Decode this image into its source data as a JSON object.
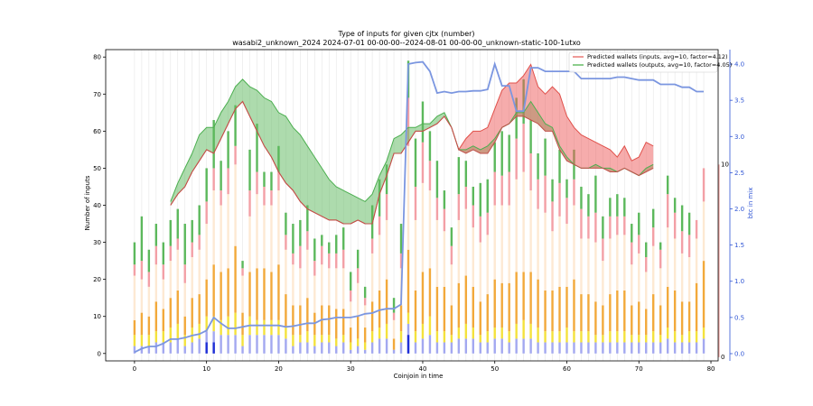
{
  "chart_data": {
    "type": "bar",
    "title": "Type of inputs for given cjtx (number)",
    "subtitle": "wasabi2_unknown_2024 2024-07-01 00-00-00--2024-08-01 00-00-00_unknown-static-100-1utxo",
    "xlabel": "Coinjoin in time",
    "ylabel": "Number of inputs",
    "ylabel_right": "btc in mix",
    "xlim": [
      -4,
      81
    ],
    "ylim": [
      -2,
      82
    ],
    "ylim_right": [
      -0.1,
      4.2
    ],
    "x_ticks": [
      0,
      10,
      20,
      30,
      40,
      50,
      60,
      70,
      80
    ],
    "y_ticks": [
      0,
      10,
      20,
      30,
      40,
      50,
      60,
      70,
      80
    ],
    "y_ticks_right": [
      0.0,
      0.5,
      1.0,
      1.5,
      2.0,
      2.5,
      3.0,
      3.5,
      4.0
    ],
    "grid": "vertical",
    "legend_position": "top-right",
    "legend": [
      {
        "label": "Predicted wallets (inputs, avg=10, factor=4.12)",
        "color": "#e8706b"
      },
      {
        "label": "Predicted wallets (outputs, avg=10, factor=4.05)",
        "color": "#5cb85c"
      }
    ],
    "right_marker": {
      "y": 51,
      "label": "10",
      "y2": -1,
      "label2": "0"
    },
    "stack_colors": {
      "blue": "#a3a8f0",
      "yellow": "#f4e23c",
      "orange": "#f2a93b",
      "cream": "#fde9d3",
      "pink": "#f3a0a6",
      "green": "#5cb85c"
    },
    "x": [
      0,
      1,
      2,
      3,
      4,
      5,
      6,
      7,
      8,
      9,
      10,
      11,
      12,
      13,
      14,
      15,
      16,
      17,
      18,
      19,
      20,
      21,
      22,
      23,
      24,
      25,
      26,
      27,
      28,
      29,
      30,
      31,
      32,
      33,
      34,
      35,
      36,
      37,
      38,
      39,
      40,
      41,
      42,
      43,
      44,
      45,
      46,
      47,
      48,
      49,
      50,
      51,
      52,
      53,
      54,
      55,
      56,
      57,
      58,
      59,
      60,
      61,
      62,
      63,
      64,
      65,
      66,
      67,
      68,
      69,
      70,
      71,
      72,
      73,
      74,
      75,
      76,
      77,
      78,
      79
    ],
    "totals": [
      30,
      37,
      28,
      35,
      30,
      36,
      39,
      35,
      36,
      40,
      50,
      63,
      52,
      60,
      67,
      25,
      55,
      62,
      49,
      49,
      56,
      38,
      35,
      36,
      40,
      31,
      32,
      30,
      32,
      34,
      22,
      28,
      18,
      40,
      47,
      51,
      15,
      35,
      79,
      58,
      68,
      60,
      52,
      44,
      34,
      53,
      52,
      45,
      46,
      47,
      57,
      60,
      59,
      69,
      74,
      63,
      54,
      58,
      47,
      55,
      47,
      55,
      45,
      43,
      48,
      37,
      42,
      43,
      42,
      35,
      38,
      30,
      39,
      30,
      48,
      42,
      40,
      38,
      36,
      50
    ],
    "greens": [
      6,
      12,
      6,
      6,
      6,
      7,
      8,
      11,
      6,
      8,
      9,
      13,
      8,
      10,
      11,
      2,
      11,
      13,
      4,
      5,
      7,
      6,
      8,
      7,
      7,
      6,
      3,
      3,
      5,
      6,
      5,
      5,
      3,
      9,
      10,
      8,
      4,
      8,
      10,
      13,
      11,
      8,
      10,
      5,
      5,
      10,
      7,
      5,
      9,
      9,
      8,
      12,
      10,
      11,
      12,
      9,
      7,
      10,
      6,
      9,
      5,
      8,
      6,
      6,
      10,
      6,
      5,
      6,
      5,
      5,
      6,
      4,
      5,
      2,
      5,
      4,
      7,
      6,
      0,
      0
    ],
    "pinks": [
      3,
      5,
      4,
      5,
      4,
      4,
      3,
      5,
      4,
      4,
      6,
      6,
      4,
      7,
      5,
      2,
      7,
      6,
      5,
      4,
      5,
      4,
      3,
      6,
      5,
      4,
      5,
      4,
      4,
      5,
      3,
      4,
      2,
      4,
      5,
      7,
      2,
      4,
      13,
      9,
      11,
      8,
      6,
      6,
      5,
      7,
      6,
      6,
      7,
      6,
      9,
      8,
      9,
      11,
      13,
      10,
      8,
      10,
      8,
      9,
      7,
      7,
      8,
      6,
      8,
      6,
      6,
      5,
      5,
      6,
      5,
      4,
      5,
      5,
      9,
      7,
      6,
      6,
      5,
      9
    ],
    "creams": [
      12,
      9,
      8,
      10,
      8,
      10,
      11,
      9,
      11,
      12,
      15,
      20,
      18,
      20,
      22,
      10,
      15,
      20,
      17,
      18,
      20,
      12,
      11,
      10,
      13,
      10,
      11,
      10,
      11,
      11,
      7,
      9,
      6,
      13,
      15,
      16,
      5,
      10,
      28,
      19,
      24,
      21,
      18,
      15,
      11,
      17,
      18,
      16,
      16,
      16,
      20,
      21,
      21,
      25,
      27,
      22,
      19,
      21,
      16,
      19,
      17,
      20,
      15,
      15,
      16,
      12,
      15,
      15,
      15,
      11,
      13,
      10,
      13,
      10,
      16,
      14,
      13,
      12,
      12,
      16
    ],
    "oranges": [
      4,
      6,
      5,
      8,
      6,
      8,
      9,
      5,
      8,
      8,
      10,
      14,
      13,
      13,
      18,
      6,
      12,
      14,
      14,
      13,
      15,
      9,
      8,
      8,
      9,
      6,
      8,
      8,
      8,
      7,
      4,
      6,
      4,
      8,
      10,
      12,
      3,
      7,
      17,
      11,
      14,
      13,
      12,
      12,
      8,
      12,
      13,
      11,
      9,
      10,
      13,
      12,
      13,
      14,
      13,
      14,
      13,
      11,
      11,
      12,
      11,
      14,
      10,
      10,
      9,
      8,
      10,
      11,
      11,
      8,
      9,
      7,
      10,
      8,
      11,
      11,
      9,
      8,
      13,
      18
    ],
    "yellows": [
      3,
      3,
      3,
      3,
      3,
      4,
      4,
      3,
      4,
      4,
      4,
      4,
      4,
      5,
      6,
      3,
      5,
      4,
      4,
      4,
      4,
      3,
      3,
      2,
      3,
      3,
      2,
      2,
      2,
      2,
      2,
      2,
      2,
      3,
      3,
      4,
      0,
      3,
      3,
      3,
      4,
      5,
      3,
      3,
      2,
      3,
      4,
      3,
      2,
      3,
      3,
      3,
      3,
      4,
      5,
      4,
      4,
      3,
      3,
      3,
      4,
      3,
      3,
      3,
      2,
      2,
      3,
      3,
      3,
      2,
      2,
      2,
      3,
      2,
      3,
      3,
      2,
      3,
      3,
      3
    ],
    "blues": [
      2,
      2,
      2,
      3,
      3,
      3,
      4,
      2,
      3,
      4,
      6,
      6,
      5,
      5,
      5,
      2,
      5,
      5,
      5,
      5,
      5,
      4,
      2,
      3,
      3,
      2,
      3,
      3,
      2,
      3,
      1,
      2,
      1,
      3,
      4,
      4,
      1,
      3,
      8,
      3,
      4,
      5,
      3,
      3,
      3,
      4,
      4,
      4,
      3,
      3,
      4,
      4,
      3,
      4,
      4,
      4,
      3,
      3,
      3,
      3,
      3,
      3,
      3,
      3,
      3,
      3,
      3,
      3,
      3,
      3,
      3,
      3,
      3,
      3,
      4,
      3,
      3,
      3,
      3,
      4
    ],
    "dark_blue_bars": [
      {
        "x": 10,
        "value": 3
      },
      {
        "x": 11,
        "value": 3
      },
      {
        "x": 38,
        "value": 5
      }
    ],
    "series": [
      {
        "name": "Predicted wallets (inputs, avg=10, factor=4.12)",
        "color": "#e8706b",
        "x": [
          5,
          6,
          7,
          8,
          9,
          10,
          11,
          12,
          13,
          14,
          15,
          16,
          17,
          18,
          19,
          20,
          21,
          22,
          23,
          24,
          25,
          26,
          27,
          28,
          29,
          30,
          31,
          32,
          33,
          34,
          35,
          36,
          37,
          38,
          39,
          40,
          41,
          42,
          43,
          44,
          45,
          46,
          47,
          48,
          49,
          50,
          51,
          52,
          53,
          54,
          55,
          56,
          57,
          58,
          59,
          60,
          61,
          62,
          63,
          64,
          65,
          66,
          67,
          68,
          69,
          70,
          71,
          72
        ],
        "y": [
          40,
          43,
          45,
          49,
          52,
          55,
          54,
          58,
          62,
          66,
          68,
          64,
          60,
          56,
          53,
          49,
          46,
          44,
          41,
          39,
          38,
          37,
          36,
          36,
          35,
          35,
          36,
          35,
          35,
          43,
          48,
          54,
          54,
          57,
          60,
          60,
          61,
          62,
          64,
          61,
          55,
          54,
          55,
          54,
          54,
          57,
          61,
          62,
          64,
          64,
          63,
          62,
          60,
          60,
          55,
          52,
          51,
          50,
          50,
          50,
          50,
          49,
          49,
          50,
          49,
          48,
          49,
          50
        ],
        "y_upper": [
          40,
          43,
          45,
          49,
          52,
          55,
          54,
          58,
          62,
          66,
          68,
          64,
          60,
          56,
          53,
          49,
          46,
          44,
          41,
          39,
          38,
          37,
          36,
          36,
          35,
          35,
          36,
          35,
          35,
          43,
          48,
          54,
          54,
          57,
          60,
          60,
          61,
          62,
          64,
          61,
          55,
          58,
          60,
          60,
          61,
          66,
          71,
          73,
          73,
          75,
          78,
          72,
          70,
          72,
          70,
          64,
          61,
          59,
          58,
          57,
          56,
          55,
          53,
          56,
          52,
          53,
          57,
          56
        ]
      },
      {
        "name": "Predicted wallets (outputs, avg=10, factor=4.05)",
        "color": "#5cb85c",
        "x": [
          5,
          6,
          7,
          8,
          9,
          10,
          11,
          12,
          13,
          14,
          15,
          16,
          17,
          18,
          19,
          20,
          21,
          22,
          23,
          24,
          25,
          26,
          27,
          28,
          29,
          30,
          31,
          32,
          33,
          34,
          35,
          36,
          37,
          38,
          39,
          40,
          41,
          42,
          43,
          44,
          45,
          46,
          47,
          48,
          49,
          50,
          51,
          52,
          53,
          54,
          55,
          56,
          57,
          58,
          59,
          60,
          61,
          62,
          63,
          64,
          65,
          66,
          67,
          68,
          69,
          70,
          71,
          72
        ],
        "y": [
          41,
          46,
          50,
          54,
          59,
          61,
          61,
          65,
          68,
          72,
          74,
          72,
          71,
          69,
          68,
          65,
          64,
          61,
          59,
          56,
          53,
          50,
          47,
          45,
          44,
          43,
          42,
          41,
          43,
          48,
          52,
          58,
          59,
          61,
          61,
          62,
          62,
          64,
          65,
          61,
          55,
          55,
          56,
          55,
          56,
          58,
          61,
          62,
          65,
          65,
          68,
          65,
          62,
          61,
          56,
          53,
          51,
          50,
          50,
          51,
          50,
          50,
          49,
          50,
          49,
          48,
          50,
          51
        ],
        "y_lower": [
          40,
          43,
          45,
          49,
          52,
          55,
          54,
          58,
          62,
          66,
          68,
          64,
          60,
          56,
          53,
          49,
          46,
          44,
          41,
          39,
          38,
          37,
          36,
          36,
          35,
          35,
          36,
          35,
          35,
          43,
          48,
          54,
          54,
          57,
          60,
          60,
          61,
          62,
          64,
          61,
          55,
          54,
          55,
          54,
          54,
          57,
          61,
          62,
          64,
          64,
          63,
          62,
          60,
          60,
          55,
          52,
          51,
          50,
          50,
          50,
          50,
          49,
          49,
          50,
          49,
          48,
          49,
          50
        ]
      },
      {
        "name": "btc in mix",
        "color": "#7b96e0",
        "axis": "right",
        "x": [
          0,
          1,
          2,
          3,
          4,
          5,
          6,
          7,
          8,
          9,
          10,
          11,
          12,
          13,
          14,
          15,
          16,
          17,
          18,
          19,
          20,
          21,
          22,
          23,
          24,
          25,
          26,
          27,
          28,
          29,
          30,
          31,
          32,
          33,
          34,
          35,
          36,
          37,
          38,
          39,
          40,
          41,
          42,
          43,
          44,
          45,
          46,
          47,
          48,
          49,
          50,
          51,
          52,
          53,
          54,
          55,
          56,
          57,
          58,
          59,
          60,
          61,
          62,
          63,
          64,
          65,
          66,
          67,
          68,
          69,
          70,
          71,
          72,
          73,
          74,
          75,
          76,
          77,
          78,
          79
        ],
        "y": [
          0.02,
          0.07,
          0.1,
          0.1,
          0.14,
          0.2,
          0.2,
          0.22,
          0.25,
          0.27,
          0.32,
          0.5,
          0.42,
          0.35,
          0.35,
          0.37,
          0.39,
          0.39,
          0.39,
          0.39,
          0.39,
          0.37,
          0.38,
          0.4,
          0.42,
          0.42,
          0.47,
          0.48,
          0.5,
          0.5,
          0.5,
          0.52,
          0.55,
          0.56,
          0.6,
          0.62,
          0.62,
          0.68,
          4.0,
          4.02,
          4.03,
          3.9,
          3.6,
          3.62,
          3.6,
          3.62,
          3.62,
          3.63,
          3.63,
          3.65,
          4.0,
          3.7,
          3.7,
          3.35,
          3.35,
          3.95,
          3.95,
          3.9,
          3.9,
          3.9,
          3.9,
          3.9,
          3.8,
          3.8,
          3.8,
          3.8,
          3.8,
          3.82,
          3.82,
          3.8,
          3.78,
          3.78,
          3.78,
          3.72,
          3.72,
          3.72,
          3.68,
          3.68,
          3.62,
          3.62
        ]
      }
    ]
  }
}
